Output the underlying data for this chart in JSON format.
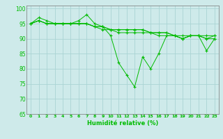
{
  "title": "",
  "xlabel": "Humidité relative (%)",
  "xlim": [
    -0.5,
    23.5
  ],
  "ylim": [
    65,
    101
  ],
  "yticks": [
    65,
    70,
    75,
    80,
    85,
    90,
    95,
    100
  ],
  "xticks": [
    0,
    1,
    2,
    3,
    4,
    5,
    6,
    7,
    8,
    9,
    10,
    11,
    12,
    13,
    14,
    15,
    16,
    17,
    18,
    19,
    20,
    21,
    22,
    23
  ],
  "bg_color": "#ceeaea",
  "grid_color": "#aad4d4",
  "line_color": "#00bb00",
  "lines": [
    [
      95,
      97,
      96,
      95,
      95,
      95,
      96,
      98,
      95,
      94,
      91,
      82,
      78,
      74,
      84,
      80,
      85,
      91,
      91,
      90,
      91,
      91,
      86,
      90
    ],
    [
      95,
      96,
      95,
      95,
      95,
      95,
      95,
      95,
      94,
      94,
      93,
      93,
      93,
      93,
      93,
      92,
      92,
      92,
      91,
      91,
      91,
      91,
      91,
      91
    ],
    [
      95,
      96,
      95,
      95,
      95,
      95,
      95,
      95,
      94,
      94,
      93,
      93,
      93,
      93,
      93,
      92,
      92,
      92,
      91,
      90,
      91,
      91,
      90,
      90
    ],
    [
      95,
      96,
      95,
      95,
      95,
      95,
      95,
      95,
      94,
      93,
      93,
      92,
      92,
      92,
      92,
      92,
      91,
      91,
      91,
      90,
      91,
      91,
      90,
      91
    ]
  ]
}
